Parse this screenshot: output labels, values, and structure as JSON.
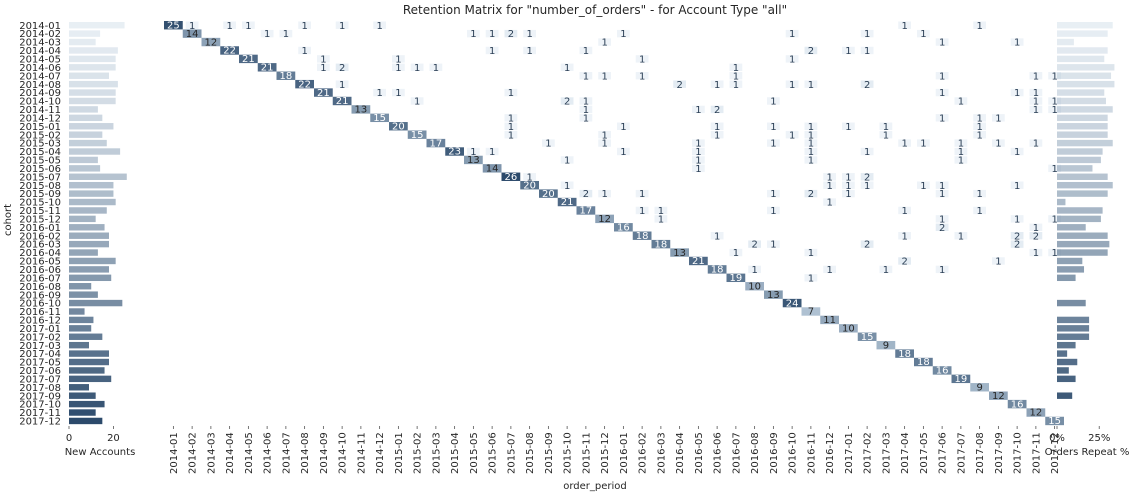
{
  "figure": {
    "title": "Retention Matrix for \"number_of_orders\" - for Account Type \"all\""
  },
  "chart_data": [
    {
      "type": "heatmap",
      "title": "Retention Matrix for \"number_of_orders\" - for Account Type \"all\"",
      "xlabel": "order_period",
      "ylabel": "cohort",
      "periods": [
        "2014-01",
        "2014-02",
        "2014-03",
        "2014-04",
        "2014-05",
        "2014-06",
        "2014-07",
        "2014-08",
        "2014-09",
        "2014-10",
        "2014-11",
        "2014-12",
        "2015-01",
        "2015-02",
        "2015-03",
        "2015-04",
        "2015-05",
        "2015-06",
        "2015-07",
        "2015-08",
        "2015-09",
        "2015-10",
        "2015-11",
        "2015-12",
        "2016-01",
        "2016-02",
        "2016-03",
        "2016-04",
        "2016-05",
        "2016-06",
        "2016-07",
        "2016-08",
        "2016-09",
        "2016-10",
        "2016-11",
        "2016-12",
        "2017-01",
        "2017-02",
        "2017-03",
        "2017-04",
        "2017-05",
        "2017-06",
        "2017-07",
        "2017-08",
        "2017-09",
        "2017-10",
        "2017-11",
        "2017-12"
      ],
      "diagonal_values": [
        25,
        14,
        12,
        22,
        21,
        21,
        18,
        22,
        21,
        21,
        13,
        15,
        20,
        15,
        17,
        23,
        13,
        14,
        26,
        20,
        20,
        21,
        17,
        12,
        16,
        18,
        18,
        13,
        21,
        18,
        19,
        10,
        13,
        24,
        7,
        11,
        10,
        15,
        9,
        18,
        18,
        16,
        19,
        9,
        12,
        16,
        12,
        15
      ],
      "repeat_cells": [
        [
          "2014-01",
          "2014-02",
          1
        ],
        [
          "2014-01",
          "2014-04",
          1
        ],
        [
          "2014-01",
          "2014-05",
          1
        ],
        [
          "2014-01",
          "2014-08",
          1
        ],
        [
          "2014-01",
          "2014-10",
          1
        ],
        [
          "2014-01",
          "2014-12",
          1
        ],
        [
          "2014-01",
          "2017-04",
          1
        ],
        [
          "2014-01",
          "2017-08",
          1
        ],
        [
          "2014-02",
          "2014-06",
          1
        ],
        [
          "2014-02",
          "2014-07",
          1
        ],
        [
          "2014-02",
          "2015-05",
          1
        ],
        [
          "2014-02",
          "2015-06",
          1
        ],
        [
          "2014-02",
          "2015-07",
          2
        ],
        [
          "2014-02",
          "2015-08",
          1
        ],
        [
          "2014-02",
          "2016-01",
          1
        ],
        [
          "2014-02",
          "2016-10",
          1
        ],
        [
          "2014-02",
          "2017-02",
          1
        ],
        [
          "2014-02",
          "2017-05",
          1
        ],
        [
          "2014-03",
          "2015-12",
          1
        ],
        [
          "2014-03",
          "2017-06",
          1
        ],
        [
          "2014-03",
          "2017-10",
          1
        ],
        [
          "2014-04",
          "2014-08",
          1
        ],
        [
          "2014-04",
          "2015-06",
          1
        ],
        [
          "2014-04",
          "2015-08",
          1
        ],
        [
          "2014-04",
          "2015-11",
          1
        ],
        [
          "2014-04",
          "2016-11",
          2
        ],
        [
          "2014-04",
          "2017-01",
          1
        ],
        [
          "2014-04",
          "2017-02",
          1
        ],
        [
          "2014-05",
          "2014-09",
          1
        ],
        [
          "2014-05",
          "2015-01",
          1
        ],
        [
          "2014-05",
          "2016-02",
          1
        ],
        [
          "2014-05",
          "2016-10",
          1
        ],
        [
          "2014-06",
          "2014-09",
          1
        ],
        [
          "2014-06",
          "2014-10",
          2
        ],
        [
          "2014-06",
          "2015-01",
          1
        ],
        [
          "2014-06",
          "2015-02",
          1
        ],
        [
          "2014-06",
          "2015-03",
          1
        ],
        [
          "2014-06",
          "2015-10",
          1
        ],
        [
          "2014-06",
          "2016-07",
          1
        ],
        [
          "2014-07",
          "2015-11",
          1
        ],
        [
          "2014-07",
          "2015-12",
          1
        ],
        [
          "2014-07",
          "2016-02",
          1
        ],
        [
          "2014-07",
          "2016-07",
          1
        ],
        [
          "2014-07",
          "2017-06",
          1
        ],
        [
          "2014-07",
          "2017-11",
          1
        ],
        [
          "2014-07",
          "2017-12",
          1
        ],
        [
          "2014-08",
          "2014-10",
          1
        ],
        [
          "2014-08",
          "2016-04",
          2
        ],
        [
          "2014-08",
          "2016-06",
          1
        ],
        [
          "2014-08",
          "2016-07",
          1
        ],
        [
          "2014-08",
          "2016-10",
          1
        ],
        [
          "2014-08",
          "2016-11",
          1
        ],
        [
          "2014-08",
          "2017-02",
          2
        ],
        [
          "2014-09",
          "2014-12",
          1
        ],
        [
          "2014-09",
          "2015-01",
          1
        ],
        [
          "2014-09",
          "2015-07",
          1
        ],
        [
          "2014-09",
          "2017-06",
          1
        ],
        [
          "2014-09",
          "2017-10",
          1
        ],
        [
          "2014-09",
          "2017-11",
          1
        ],
        [
          "2014-10",
          "2015-02",
          1
        ],
        [
          "2014-10",
          "2015-10",
          2
        ],
        [
          "2014-10",
          "2015-11",
          1
        ],
        [
          "2014-10",
          "2016-09",
          1
        ],
        [
          "2014-10",
          "2017-07",
          1
        ],
        [
          "2014-10",
          "2017-11",
          1
        ],
        [
          "2014-10",
          "2017-12",
          1
        ],
        [
          "2014-11",
          "2015-11",
          1
        ],
        [
          "2014-11",
          "2016-05",
          1
        ],
        [
          "2014-11",
          "2016-06",
          2
        ],
        [
          "2014-11",
          "2017-11",
          1
        ],
        [
          "2014-11",
          "2017-12",
          1
        ],
        [
          "2014-12",
          "2015-07",
          1
        ],
        [
          "2014-12",
          "2015-11",
          1
        ],
        [
          "2014-12",
          "2017-06",
          1
        ],
        [
          "2014-12",
          "2017-08",
          1
        ],
        [
          "2014-12",
          "2017-09",
          1
        ],
        [
          "2015-01",
          "2015-07",
          1
        ],
        [
          "2015-01",
          "2016-01",
          1
        ],
        [
          "2015-01",
          "2016-06",
          1
        ],
        [
          "2015-01",
          "2016-09",
          1
        ],
        [
          "2015-01",
          "2016-11",
          1
        ],
        [
          "2015-01",
          "2017-01",
          1
        ],
        [
          "2015-01",
          "2017-03",
          1
        ],
        [
          "2015-01",
          "2017-08",
          1
        ],
        [
          "2015-02",
          "2015-07",
          1
        ],
        [
          "2015-02",
          "2015-12",
          1
        ],
        [
          "2015-02",
          "2016-06",
          1
        ],
        [
          "2015-02",
          "2016-10",
          1
        ],
        [
          "2015-02",
          "2016-11",
          1
        ],
        [
          "2015-02",
          "2017-03",
          1
        ],
        [
          "2015-02",
          "2017-08",
          1
        ],
        [
          "2015-03",
          "2015-09",
          1
        ],
        [
          "2015-03",
          "2015-12",
          1
        ],
        [
          "2015-03",
          "2016-05",
          1
        ],
        [
          "2015-03",
          "2016-09",
          1
        ],
        [
          "2015-03",
          "2016-11",
          1
        ],
        [
          "2015-03",
          "2017-04",
          1
        ],
        [
          "2015-03",
          "2017-05",
          1
        ],
        [
          "2015-03",
          "2017-07",
          1
        ],
        [
          "2015-03",
          "2017-09",
          1
        ],
        [
          "2015-03",
          "2017-11",
          1
        ],
        [
          "2015-04",
          "2015-05",
          1
        ],
        [
          "2015-04",
          "2015-06",
          1
        ],
        [
          "2015-04",
          "2016-01",
          1
        ],
        [
          "2015-04",
          "2016-05",
          1
        ],
        [
          "2015-04",
          "2016-11",
          1
        ],
        [
          "2015-04",
          "2017-02",
          1
        ],
        [
          "2015-04",
          "2017-07",
          1
        ],
        [
          "2015-04",
          "2017-10",
          1
        ],
        [
          "2015-05",
          "2015-10",
          1
        ],
        [
          "2015-05",
          "2016-05",
          1
        ],
        [
          "2015-05",
          "2016-11",
          1
        ],
        [
          "2015-05",
          "2017-07",
          1
        ],
        [
          "2015-06",
          "2016-05",
          1
        ],
        [
          "2015-06",
          "2017-12",
          1
        ],
        [
          "2015-07",
          "2015-08",
          1
        ],
        [
          "2015-07",
          "2016-12",
          1
        ],
        [
          "2015-07",
          "2017-01",
          1
        ],
        [
          "2015-07",
          "2017-02",
          2
        ],
        [
          "2015-08",
          "2015-10",
          1
        ],
        [
          "2015-08",
          "2016-12",
          1
        ],
        [
          "2015-08",
          "2017-01",
          1
        ],
        [
          "2015-08",
          "2017-02",
          1
        ],
        [
          "2015-08",
          "2017-05",
          1
        ],
        [
          "2015-08",
          "2017-06",
          1
        ],
        [
          "2015-08",
          "2017-10",
          1
        ],
        [
          "2015-09",
          "2015-11",
          2
        ],
        [
          "2015-09",
          "2015-12",
          1
        ],
        [
          "2015-09",
          "2016-02",
          1
        ],
        [
          "2015-09",
          "2016-09",
          1
        ],
        [
          "2015-09",
          "2016-11",
          2
        ],
        [
          "2015-09",
          "2017-01",
          1
        ],
        [
          "2015-09",
          "2017-06",
          1
        ],
        [
          "2015-09",
          "2017-08",
          1
        ],
        [
          "2015-10",
          "2016-12",
          1
        ],
        [
          "2015-11",
          "2016-02",
          1
        ],
        [
          "2015-11",
          "2016-03",
          1
        ],
        [
          "2015-11",
          "2016-09",
          1
        ],
        [
          "2015-11",
          "2017-04",
          1
        ],
        [
          "2015-11",
          "2017-08",
          1
        ],
        [
          "2015-12",
          "2016-03",
          1
        ],
        [
          "2015-12",
          "2017-06",
          1
        ],
        [
          "2015-12",
          "2017-10",
          1
        ],
        [
          "2015-12",
          "2017-12",
          1
        ],
        [
          "2016-01",
          "2017-06",
          2
        ],
        [
          "2016-01",
          "2017-11",
          1
        ],
        [
          "2016-02",
          "2016-06",
          1
        ],
        [
          "2016-02",
          "2017-04",
          1
        ],
        [
          "2016-02",
          "2017-07",
          1
        ],
        [
          "2016-02",
          "2017-10",
          2
        ],
        [
          "2016-02",
          "2017-11",
          2
        ],
        [
          "2016-03",
          "2016-08",
          2
        ],
        [
          "2016-03",
          "2016-09",
          1
        ],
        [
          "2016-03",
          "2017-02",
          2
        ],
        [
          "2016-03",
          "2017-10",
          2
        ],
        [
          "2016-04",
          "2016-07",
          1
        ],
        [
          "2016-04",
          "2016-11",
          1
        ],
        [
          "2016-04",
          "2017-11",
          1
        ],
        [
          "2016-04",
          "2017-12",
          1
        ],
        [
          "2016-05",
          "2017-04",
          2
        ],
        [
          "2016-05",
          "2017-09",
          1
        ],
        [
          "2016-06",
          "2016-08",
          1
        ],
        [
          "2016-06",
          "2016-12",
          1
        ],
        [
          "2016-06",
          "2017-03",
          1
        ],
        [
          "2016-06",
          "2017-06",
          1
        ],
        [
          "2016-07",
          "2016-11",
          1
        ]
      ],
      "color_scale": {
        "low": "#dbe9f4",
        "high": "#2c4a6b"
      }
    },
    {
      "type": "bar",
      "orientation": "horizontal",
      "xlabel": "New Accounts",
      "x_ticks": [
        "0",
        "20"
      ],
      "xlim": [
        0,
        27
      ],
      "values": [
        25,
        14,
        12,
        22,
        21,
        21,
        18,
        22,
        21,
        21,
        13,
        15,
        20,
        15,
        17,
        23,
        13,
        14,
        26,
        20,
        20,
        21,
        17,
        12,
        16,
        18,
        18,
        13,
        21,
        18,
        19,
        10,
        13,
        24,
        7,
        11,
        10,
        15,
        9,
        18,
        18,
        16,
        19,
        9,
        12,
        16,
        12,
        15
      ]
    },
    {
      "type": "bar",
      "orientation": "horizontal",
      "xlabel": "Orders Repeat %",
      "x_ticks": [
        "0%",
        "25%"
      ],
      "xlim": [
        0,
        0.45
      ],
      "values": [
        0.33,
        0.3,
        0.1,
        0.3,
        0.28,
        0.34,
        0.32,
        0.34,
        0.28,
        0.29,
        0.33,
        0.3,
        0.3,
        0.3,
        0.33,
        0.27,
        0.26,
        0.21,
        0.3,
        0.33,
        0.3,
        0.05,
        0.27,
        0.26,
        0.17,
        0.3,
        0.31,
        0.3,
        0.15,
        0.16,
        0.11,
        0,
        0,
        0.17,
        0,
        0.19,
        0.19,
        0.19,
        0.11,
        0.06,
        0.12,
        0.07,
        0.11,
        0,
        0.09,
        0,
        0,
        0
      ]
    }
  ]
}
